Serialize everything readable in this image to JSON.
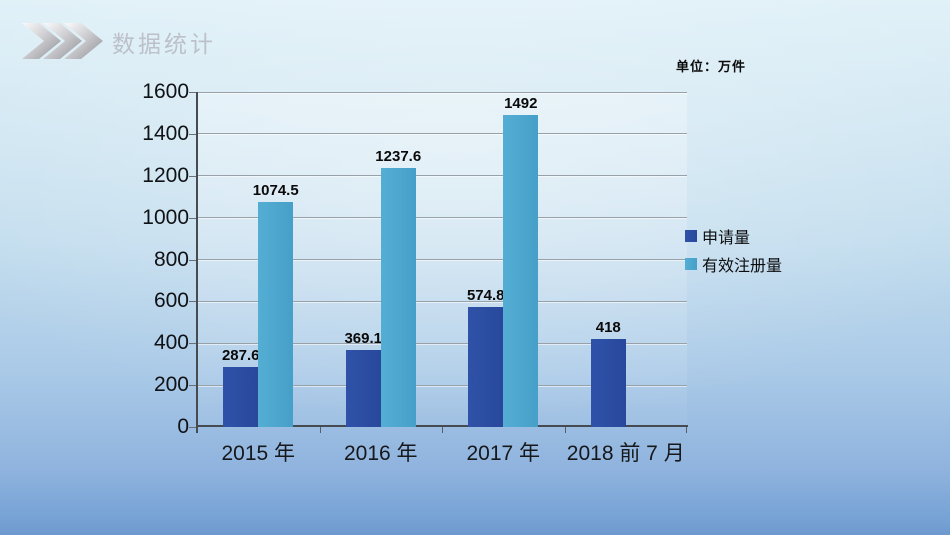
{
  "slide": {
    "title": "数据统计",
    "unit_label": "单位：万件"
  },
  "chart_data": {
    "type": "bar",
    "title": "数据统计",
    "unit": "单位：万件",
    "categories": [
      "2015 年",
      "2016 年",
      "2017 年",
      "2018 前 7 月"
    ],
    "series": [
      {
        "name": "申请量",
        "color_start": "#2f52a8",
        "color_end": "#28489c",
        "color": "#2b4ca0",
        "values": [
          287.6,
          369.1,
          574.8,
          418
        ]
      },
      {
        "name": "有效注册量",
        "color_start": "#54aed4",
        "color_end": "#459fc8",
        "color": "#4aa7ce",
        "values": [
          1074.5,
          1237.6,
          1492,
          null
        ]
      }
    ],
    "data_labels": [
      [
        "287.6",
        "369.1",
        "574.8",
        "418"
      ],
      [
        "1074.5",
        "1237.6",
        "1492",
        null
      ]
    ],
    "ylim": [
      0,
      1600
    ],
    "ytick_step": 200,
    "ytick_labels": [
      "0",
      "200",
      "400",
      "600",
      "800",
      "1000",
      "1200",
      "1400",
      "1600"
    ],
    "grid": true,
    "legend_position": "right",
    "legend_entries": [
      "申请量",
      "有效注册量"
    ]
  },
  "colors": {
    "bar_dark": "#2b4ca0",
    "bar_light": "#4aa7ce",
    "gridline": "#98a0a8",
    "axis": "#464b52",
    "title_faded": "#a7a4ad",
    "text": "#0c0d0f"
  }
}
